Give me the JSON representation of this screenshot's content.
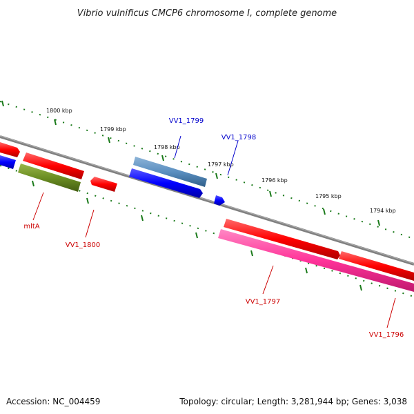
{
  "title": "Vibrio vulnificus CMCP6 chromosome I, complete genome",
  "footer": {
    "accession": "Accession: NC_004459",
    "summary": "Topology: circular; Length: 3,281,944 bp; Genes: 3,038"
  },
  "colors": {
    "backbone": "#808080",
    "tick": "#1a7a1a",
    "forward_label": "#0000cc",
    "reverse_label": "#cc0000",
    "gene_red": "#ff0000",
    "gene_blue": "#0000ff",
    "gene_steelblue": "#5b8fc0",
    "gene_olive": "#6b8e23",
    "gene_pink": "#ff3399"
  },
  "tick_labels": [
    "1800 kbp",
    "1799 kbp",
    "1798 kbp",
    "1797 kbp",
    "1796 kbp",
    "1795 kbp",
    "1794 kbp"
  ],
  "gene_labels": {
    "vv1_1799": "VV1_1799",
    "vv1_1798": "VV1_1798",
    "mlta": "mltA",
    "vv1_1800": "VV1_1800",
    "vv1_1797": "VV1_1797",
    "vv1_1796": "VV1_1796"
  }
}
